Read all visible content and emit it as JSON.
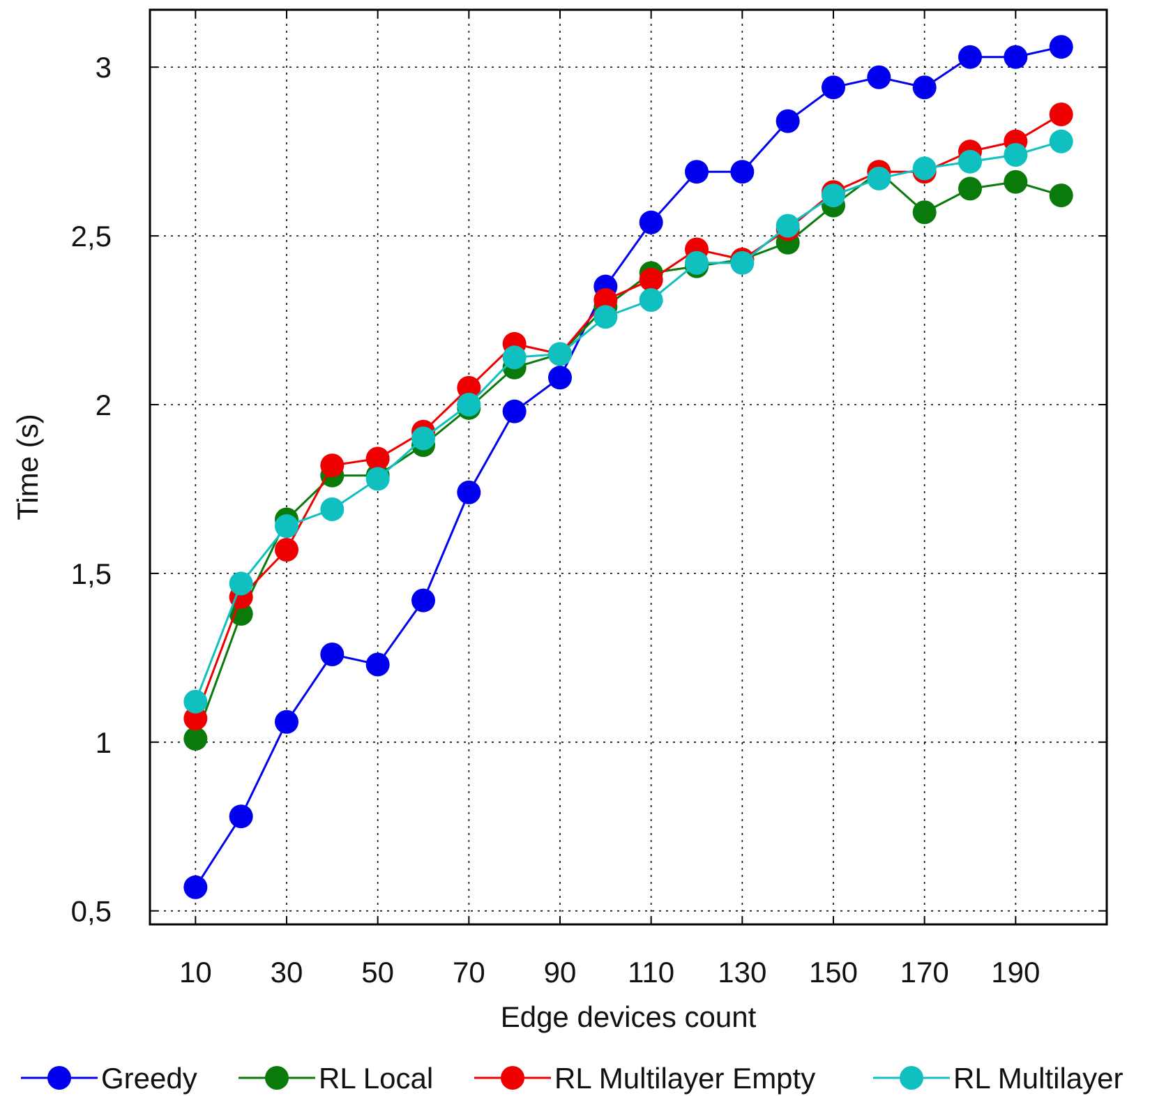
{
  "chart_data": {
    "type": "line",
    "title": "",
    "xlabel": "Edge devices count",
    "ylabel": "Time (s)",
    "xlim": [
      0,
      210
    ],
    "ylim": [
      0.46,
      3.17
    ],
    "grid": true,
    "legend_position": "bottom",
    "x": [
      10,
      20,
      30,
      40,
      50,
      60,
      70,
      80,
      90,
      100,
      110,
      120,
      130,
      140,
      150,
      160,
      170,
      180,
      190,
      200
    ],
    "x_tick_values": [
      10,
      30,
      50,
      70,
      90,
      110,
      130,
      150,
      170,
      190
    ],
    "x_tick_labels": [
      "10",
      "30",
      "50",
      "70",
      "90",
      "110",
      "130",
      "150",
      "170",
      "190"
    ],
    "y_tick_values": [
      0.5,
      1,
      1.5,
      2,
      2.5,
      3
    ],
    "y_tick_labels": [
      "0,5",
      "1",
      "1,5",
      "2",
      "2,5",
      "3"
    ],
    "series": [
      {
        "name": "Greedy",
        "color": "#0000ee",
        "values": [
          0.57,
          0.78,
          1.06,
          1.26,
          1.23,
          1.42,
          1.74,
          1.98,
          2.08,
          2.35,
          2.54,
          2.69,
          2.69,
          2.84,
          2.94,
          2.97,
          2.94,
          3.03,
          3.03,
          3.06
        ]
      },
      {
        "name": "RL Local",
        "color": "#0a7a0a",
        "values": [
          1.01,
          1.38,
          1.66,
          1.79,
          1.79,
          1.88,
          1.99,
          2.11,
          2.15,
          2.29,
          2.39,
          2.41,
          2.43,
          2.48,
          2.59,
          2.69,
          2.57,
          2.64,
          2.66,
          2.62
        ]
      },
      {
        "name": "RL Multilayer Empty",
        "color": "#ee0000",
        "values": [
          1.07,
          1.43,
          1.57,
          1.82,
          1.84,
          1.92,
          2.05,
          2.18,
          2.15,
          2.31,
          2.37,
          2.46,
          2.43,
          2.52,
          2.63,
          2.69,
          2.69,
          2.75,
          2.78,
          2.86
        ]
      },
      {
        "name": "RL Multilayer",
        "color": "#10bfbf",
        "values": [
          1.12,
          1.47,
          1.64,
          1.69,
          1.78,
          1.9,
          2.0,
          2.14,
          2.15,
          2.26,
          2.31,
          2.42,
          2.42,
          2.53,
          2.62,
          2.67,
          2.7,
          2.72,
          2.74,
          2.78
        ]
      }
    ]
  }
}
